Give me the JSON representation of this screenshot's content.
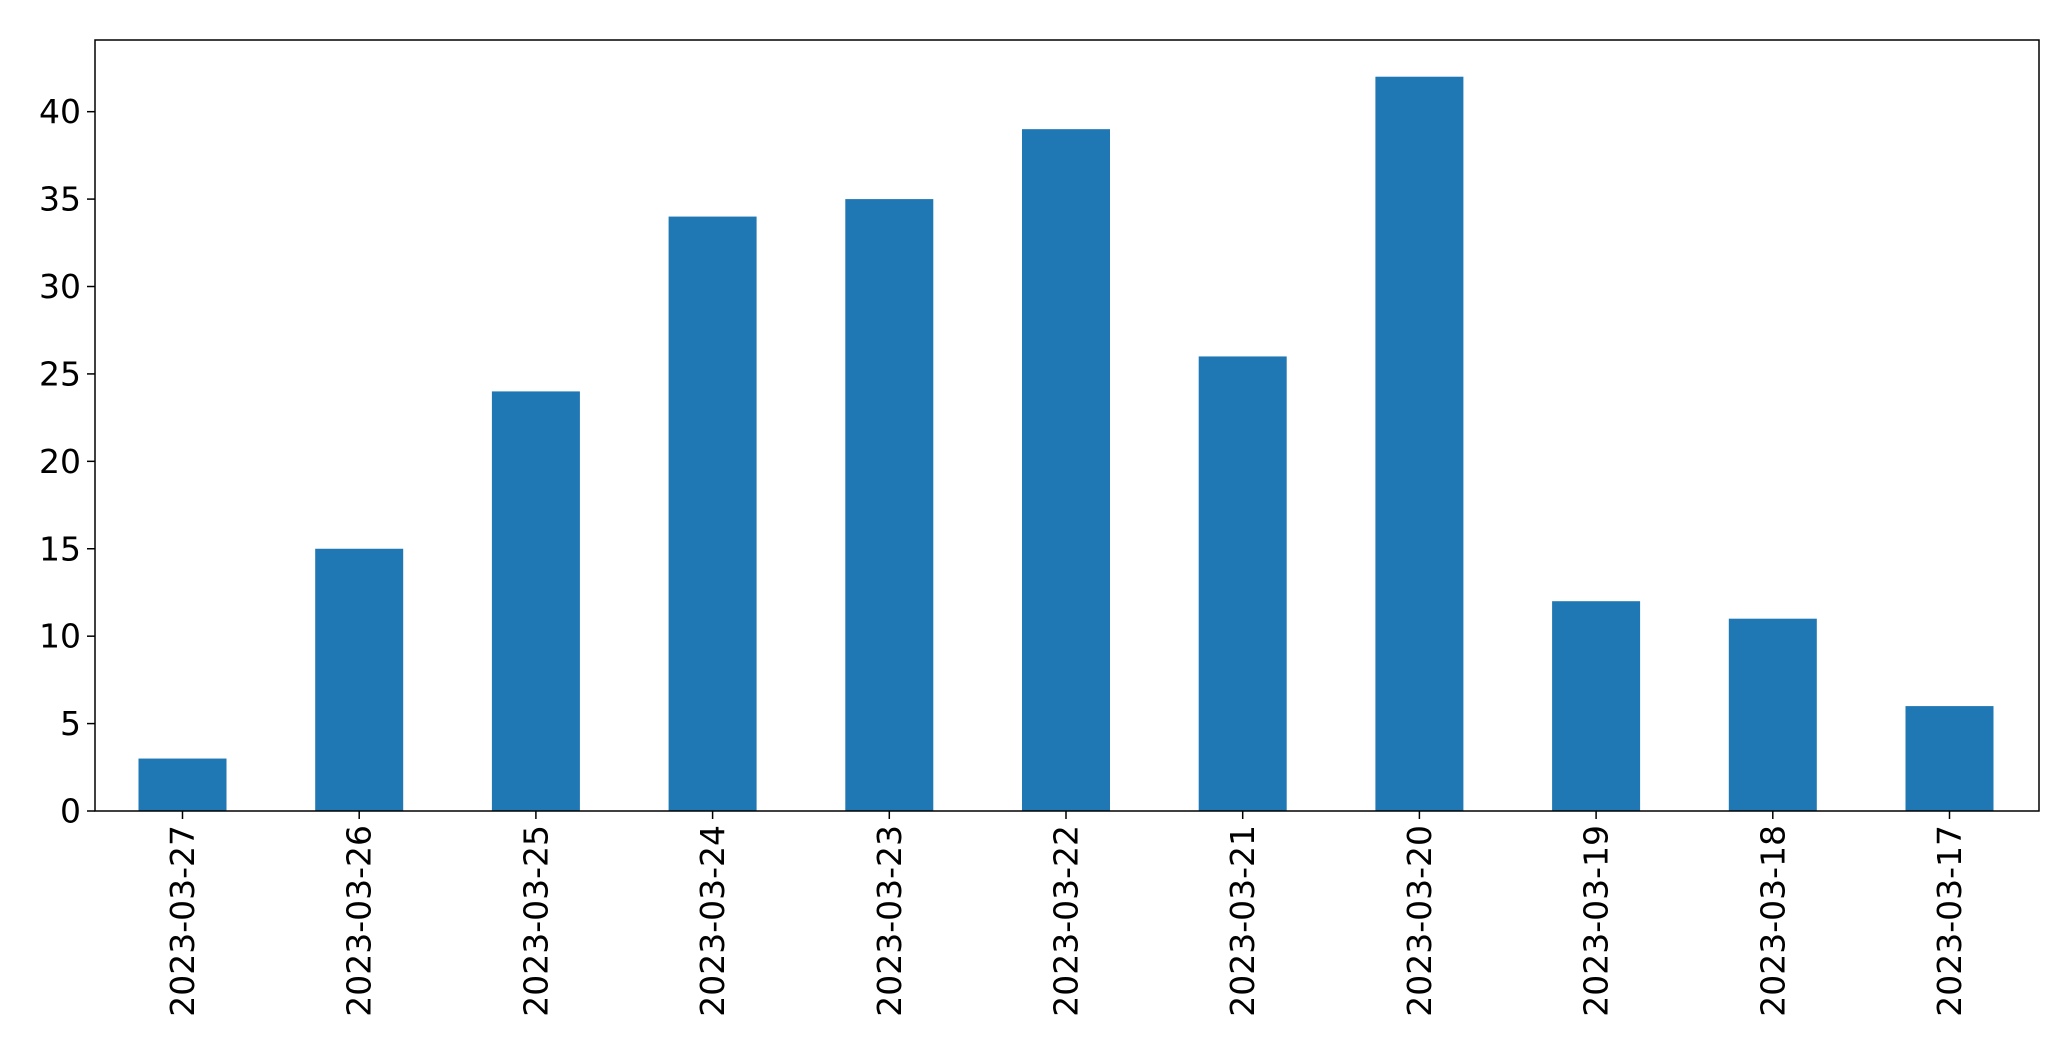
{
  "chart_data": {
    "type": "bar",
    "title": "",
    "xlabel": "",
    "ylabel": "",
    "categories": [
      "2023-03-27",
      "2023-03-26",
      "2023-03-25",
      "2023-03-24",
      "2023-03-23",
      "2023-03-22",
      "2023-03-21",
      "2023-03-20",
      "2023-03-19",
      "2023-03-18",
      "2023-03-17"
    ],
    "values": [
      3,
      15,
      24,
      34,
      35,
      39,
      26,
      42,
      12,
      11,
      6
    ],
    "yticks": [
      0,
      5,
      10,
      15,
      20,
      25,
      30,
      35,
      40
    ],
    "ylim": [
      0,
      44.1
    ],
    "grid": false,
    "bar_color": "#1f77b4"
  }
}
